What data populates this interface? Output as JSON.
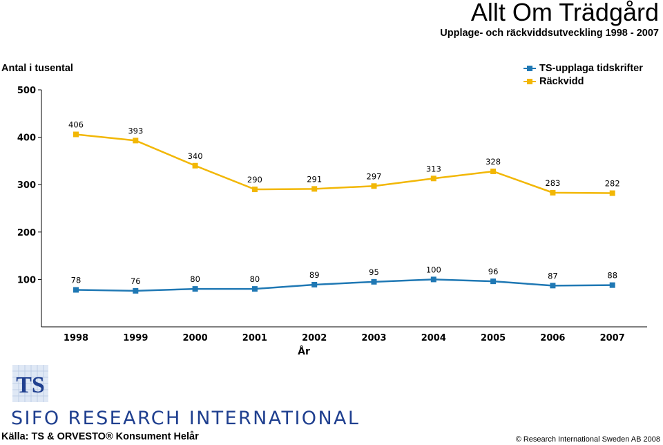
{
  "header": {
    "title": "Allt Om Trädgård",
    "subtitle": "Upplage- och räckviddsutveckling 1998 - 2007"
  },
  "chart_data": {
    "type": "line",
    "ylabel": "Antal i tusental",
    "xlabel": "År",
    "categories": [
      "1998",
      "1999",
      "2000",
      "2001",
      "2002",
      "2003",
      "2004",
      "2005",
      "2006",
      "2007"
    ],
    "ylim": [
      0,
      500
    ],
    "yticks": [
      "100",
      "200",
      "300",
      "400",
      "500"
    ],
    "grid": false,
    "legend_position": "top-right",
    "series": [
      {
        "name": "TS-upplaga tidskrifter",
        "color": "#1f78b4",
        "values": [
          78,
          76,
          80,
          80,
          89,
          95,
          100,
          96,
          87,
          88
        ]
      },
      {
        "name": "Räckvidd",
        "color": "#f2b705",
        "values": [
          406,
          393,
          340,
          290,
          291,
          297,
          313,
          328,
          283,
          282
        ]
      }
    ]
  },
  "footer": {
    "logo_text": "TS",
    "brand": "SIFO RESEARCH INTERNATIONAL",
    "source": "Källa: TS & ORVESTO® Konsument Helår",
    "copyright": "© Research International Sweden AB 2008"
  }
}
